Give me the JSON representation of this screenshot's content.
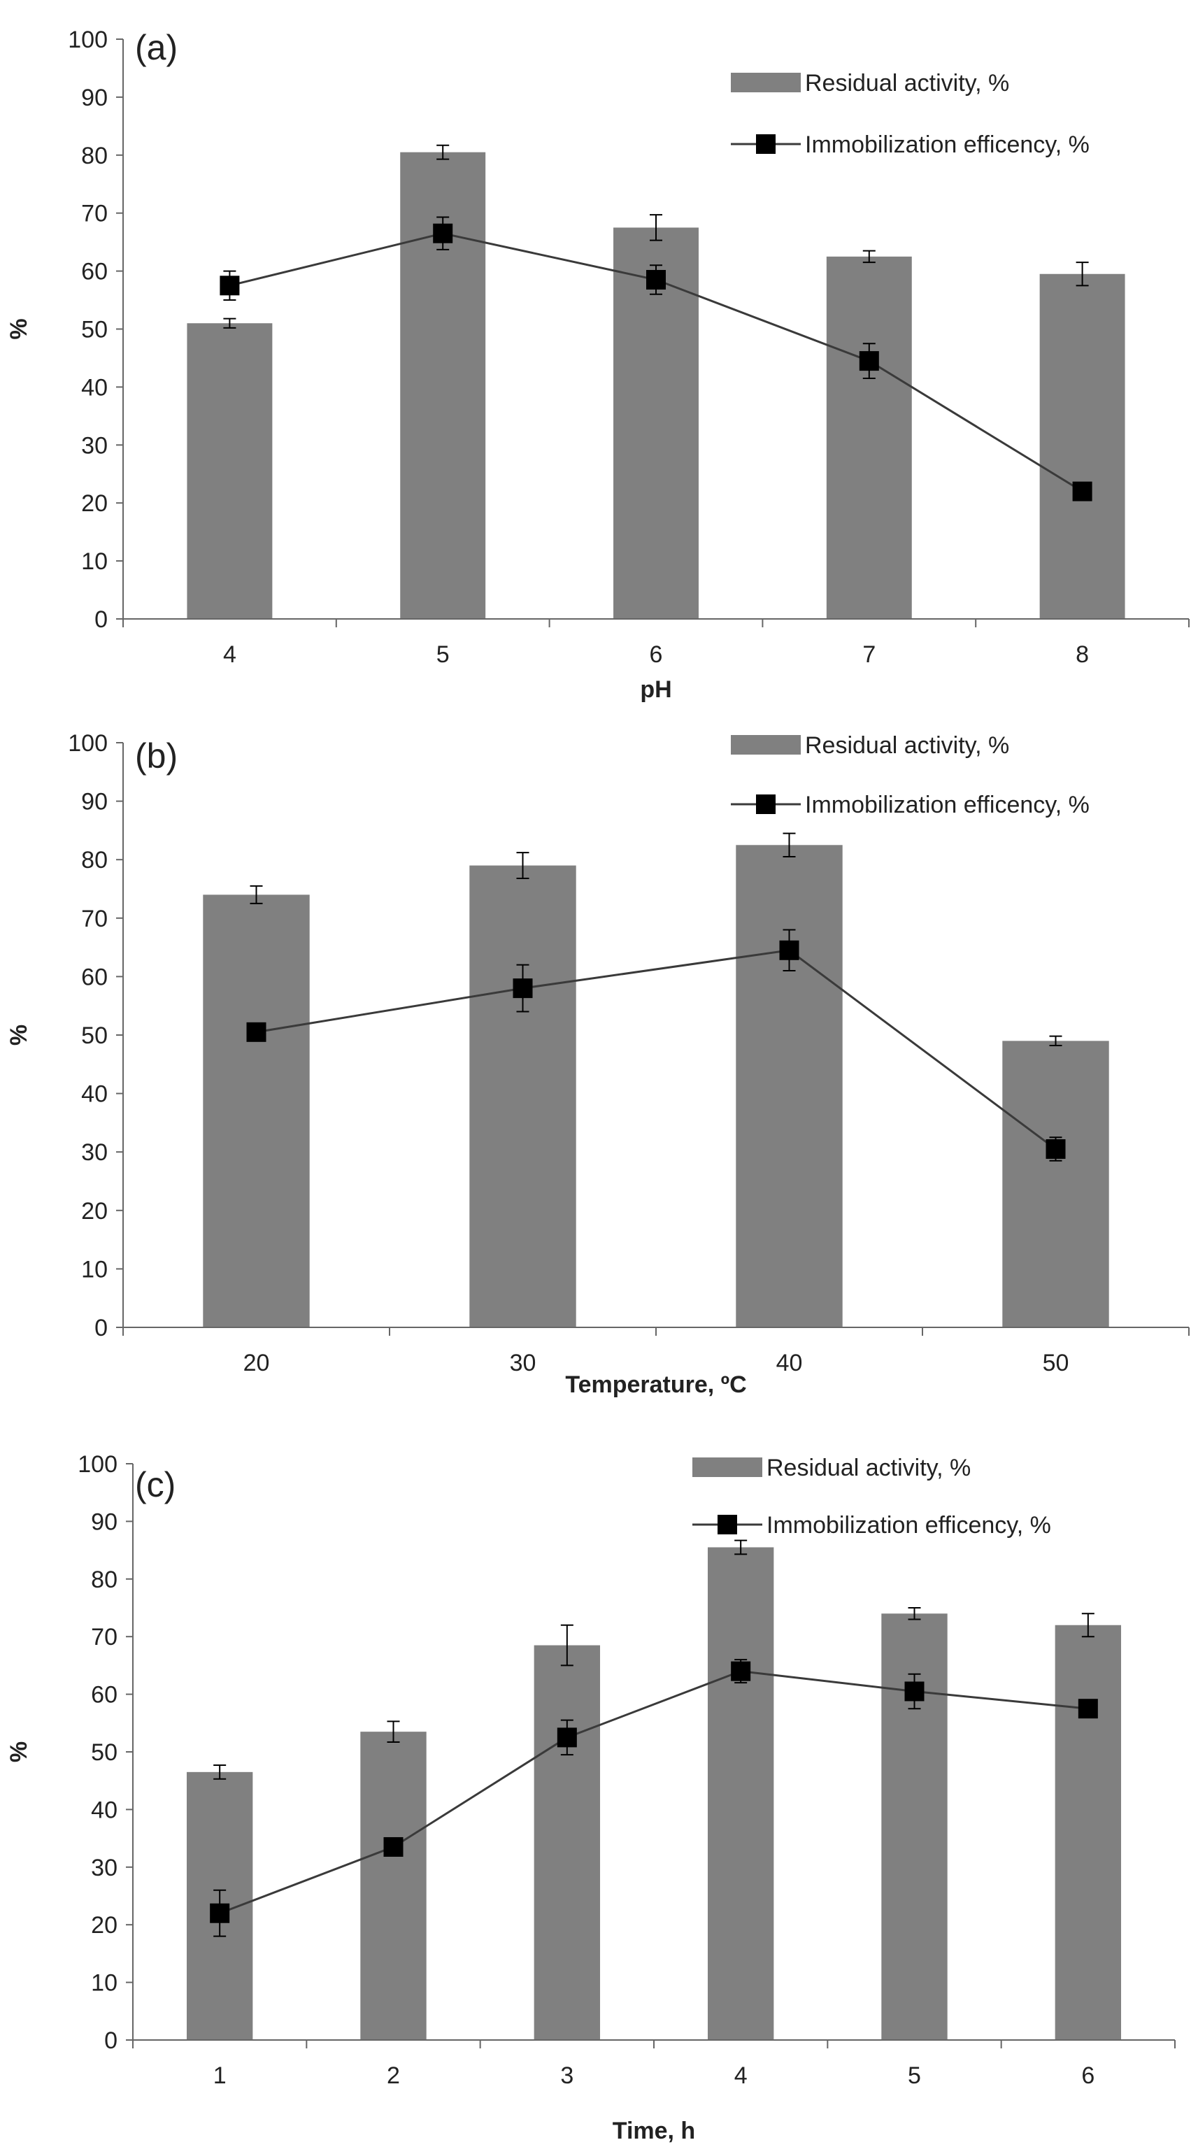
{
  "colors": {
    "bar": "#808080",
    "line": "#3a3a3a",
    "marker": "#000000",
    "axis": "#666666",
    "text": "#222222"
  },
  "chart_data": [
    {
      "type": "bar",
      "panel_label": "(a)",
      "categories": [
        "4",
        "5",
        "6",
        "7",
        "8"
      ],
      "xlabel": "pH",
      "ylabel": "%",
      "ylim": [
        0,
        100
      ],
      "yticks": [
        "0",
        "10",
        "20",
        "30",
        "40",
        "50",
        "60",
        "70",
        "80",
        "90",
        "100"
      ],
      "legend": [
        "Residual activity, %",
        "Immobilization efficency, %"
      ],
      "series": [
        {
          "name": "Residual activity, %",
          "kind": "bar",
          "values": [
            51,
            80.5,
            67.5,
            62.5,
            59.5
          ],
          "errors": [
            0.8,
            1.2,
            2.2,
            1.0,
            2.0
          ]
        },
        {
          "name": "Immobilization efficency, %",
          "kind": "line",
          "values": [
            57.5,
            66.5,
            58.5,
            44.5,
            22
          ],
          "errors": [
            2.5,
            2.8,
            2.5,
            3.0,
            1.5
          ]
        }
      ]
    },
    {
      "type": "bar",
      "panel_label": "(b)",
      "categories": [
        "20",
        "30",
        "40",
        "50"
      ],
      "xlabel": "Temperature, ºC",
      "ylabel": "%",
      "ylim": [
        0,
        100
      ],
      "yticks": [
        "0",
        "10",
        "20",
        "30",
        "40",
        "50",
        "60",
        "70",
        "80",
        "90",
        "100"
      ],
      "legend": [
        "Residual activity, %",
        "Immobilization efficency, %"
      ],
      "series": [
        {
          "name": "Residual activity, %",
          "kind": "bar",
          "values": [
            74,
            79,
            82.5,
            49
          ],
          "errors": [
            1.5,
            2.2,
            2.0,
            0.8
          ]
        },
        {
          "name": "Immobilization efficency, %",
          "kind": "line",
          "values": [
            50.5,
            58,
            64.5,
            30.5
          ],
          "errors": [
            1.0,
            4.0,
            3.5,
            2.0
          ]
        }
      ]
    },
    {
      "type": "bar",
      "panel_label": "(c)",
      "categories": [
        "1",
        "2",
        "3",
        "4",
        "5",
        "6"
      ],
      "xlabel": "Time, h",
      "ylabel": "%",
      "ylim": [
        0,
        100
      ],
      "yticks": [
        "0",
        "10",
        "20",
        "30",
        "40",
        "50",
        "60",
        "70",
        "80",
        "90",
        "100"
      ],
      "legend": [
        "Residual activity, %",
        "Immobilization efficency, %"
      ],
      "series": [
        {
          "name": "Residual activity, %",
          "kind": "bar",
          "values": [
            46.5,
            53.5,
            68.5,
            85.5,
            74,
            72
          ],
          "errors": [
            1.2,
            1.8,
            3.5,
            1.2,
            1.0,
            2.0
          ]
        },
        {
          "name": "Immobilization efficency, %",
          "kind": "line",
          "values": [
            22,
            33.5,
            52.5,
            64,
            60.5,
            57.5
          ],
          "errors": [
            4.0,
            1.0,
            3.0,
            2.0,
            3.0,
            1.0
          ]
        }
      ]
    }
  ]
}
